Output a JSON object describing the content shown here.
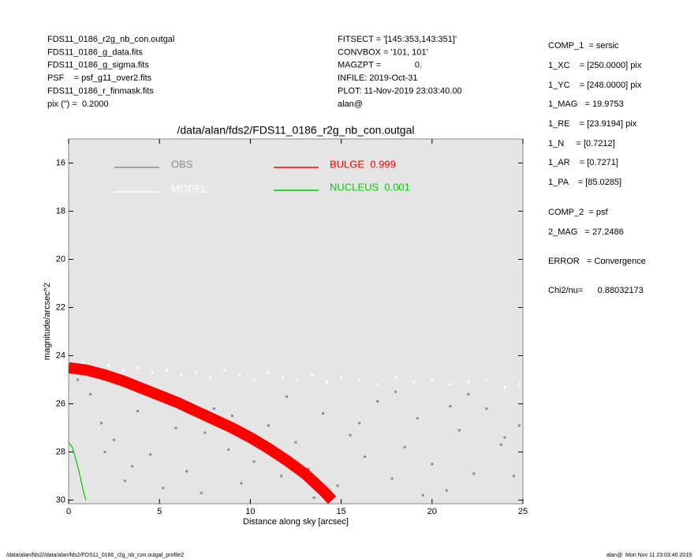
{
  "header": {
    "left": [
      "FDS11_0186_r2g_nb_con.outgal",
      "FDS11_0186_g_data.fits",
      "FDS11_0186_g_sigma.fits",
      "PSF    = psf_g11_over2.fits",
      "FDS11_0186_r_finmask.fits",
      "pix (\") =  0.2000"
    ],
    "middle": [
      "FITSECT = '[145:353,143:351]'",
      "CONVBOX = '101, 101'",
      "MAGZPT =              0.",
      "INFILE: 2019-Oct-31",
      "PLOT: 11-Nov-2019 23:03:40.00",
      "alan@"
    ],
    "right": [
      "COMP_1  = sersic",
      "1_XC    = [250.0000] pix",
      "1_YC    = [248.0000] pix",
      "1_MAG   = 19.9753",
      "1_RE    = [23.9194] pix",
      "1_N     = [0.7212]",
      "1_AR    = [0.7271]",
      "1_PA    = [85.0285]",
      "COMP_2  = psf",
      "2_MAG   = 27.2486",
      "ERROR   = Convergence",
      "Chi2/nu=      0.88032173"
    ]
  },
  "footer": {
    "left": "/data/alan/fds2//data/alan/fds2/FDS11_0186_r2g_nb_con.outgal_profile2",
    "right": "alan@  Mon Nov 11 23:03:40 2019"
  },
  "chart_data": {
    "type": "scatter",
    "title": "/data/alan/fds2/FDS11_0186_r2g_nb_con.outgal",
    "xlabel": "Distance along sky [arcsec]",
    "ylabel": "magnitude/arcsec^2",
    "xlim": [
      0,
      25
    ],
    "xticks": [
      0,
      5,
      10,
      15,
      20,
      25
    ],
    "ylim": [
      15,
      30.15
    ],
    "y_inverted": true,
    "yticks": [
      16,
      18,
      20,
      22,
      24,
      26,
      28,
      30
    ],
    "series": [
      {
        "name": "OBS",
        "color": "#8c8c8c",
        "mark": "points",
        "x": [
          0.5,
          1.2,
          1.8,
          2.5,
          3.1,
          3.8,
          4.5,
          5.2,
          5.9,
          6.5,
          7.3,
          8.0,
          8.8,
          9.5,
          10.2,
          11.0,
          11.7,
          12.5,
          13.2,
          14.0,
          14.8,
          15.5,
          16.3,
          17.0,
          17.8,
          18.5,
          19.2,
          20.0,
          20.8,
          21.5,
          22.3,
          23.0,
          23.8,
          24.5,
          3.5,
          6.0,
          9.0,
          12.0,
          16.0,
          19.5,
          22.0,
          24.8,
          2.0,
          7.5,
          13.5,
          18.0,
          21.0,
          24.0
        ],
        "values": [
          25.0,
          25.6,
          26.8,
          27.5,
          29.2,
          26.3,
          28.1,
          29.5,
          27.0,
          28.8,
          29.7,
          26.2,
          27.9,
          29.3,
          28.4,
          26.9,
          29.0,
          27.6,
          28.7,
          26.4,
          29.4,
          27.3,
          28.2,
          25.9,
          29.1,
          27.8,
          26.6,
          28.5,
          29.6,
          27.1,
          28.9,
          26.2,
          27.7,
          29.0,
          28.6,
          25.8,
          26.5,
          25.7,
          26.8,
          29.8,
          25.6,
          26.9,
          28.0,
          27.2,
          29.9,
          25.5,
          26.1,
          27.4
        ]
      },
      {
        "name": "MODEL",
        "color": "#ffffff",
        "mark": "points",
        "x": [
          0.3,
          0.8,
          1.5,
          2.2,
          3.0,
          3.8,
          4.6,
          5.4,
          6.2,
          7.0,
          7.8,
          8.6,
          9.4,
          10.2,
          11.0,
          11.8,
          12.6,
          13.4,
          14.2,
          15.0,
          16.0,
          17.0,
          18.0,
          19.0,
          20.0,
          21.0,
          22.0,
          23.0,
          24.0,
          24.8
        ],
        "values": [
          24.4,
          24.3,
          24.5,
          24.4,
          24.6,
          24.5,
          24.7,
          24.6,
          24.8,
          24.7,
          24.9,
          24.6,
          24.8,
          25.0,
          24.7,
          24.9,
          25.0,
          24.8,
          25.1,
          24.9,
          25.0,
          25.2,
          24.9,
          25.1,
          25.0,
          25.2,
          25.1,
          25.0,
          25.3,
          25.2
        ]
      },
      {
        "name": "BULGE  0.999",
        "color": "#ff0000",
        "mark": "band",
        "x": [
          0,
          1,
          2,
          3,
          4,
          5,
          6,
          7,
          8,
          9,
          10,
          11,
          12,
          13,
          14,
          14.5
        ],
        "values": [
          24.5,
          24.6,
          24.8,
          25.05,
          25.35,
          25.65,
          25.95,
          26.3,
          26.65,
          27.0,
          27.4,
          27.85,
          28.35,
          28.9,
          29.6,
          30.0
        ]
      },
      {
        "name": "NUCLEUS  0.001",
        "color": "#00cc00",
        "mark": "line",
        "x": [
          0,
          0.2,
          0.4,
          0.6,
          0.8,
          0.95
        ],
        "values": [
          27.6,
          27.8,
          28.3,
          28.9,
          29.6,
          30.0
        ]
      }
    ]
  }
}
